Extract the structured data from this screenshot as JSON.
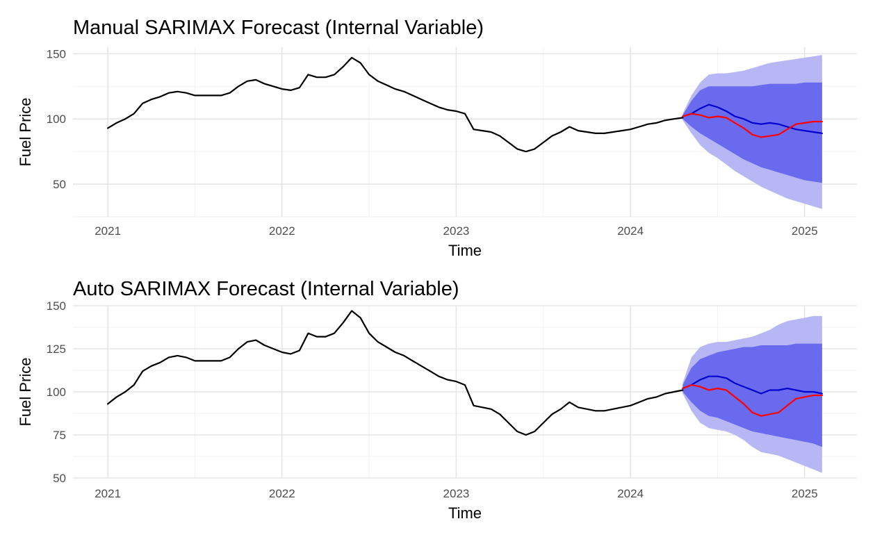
{
  "chart_data": [
    {
      "type": "line",
      "title": "Manual SARIMAX Forecast (Internal Variable)",
      "xlabel": "Time",
      "ylabel": "Fuel Price",
      "x_ticks": [
        "2021",
        "2022",
        "2023",
        "2024",
        "2025"
      ],
      "y_ticks": [
        50,
        100,
        150
      ],
      "xlim": [
        2020.8,
        2025.3
      ],
      "ylim": [
        25,
        155
      ],
      "grid": true,
      "colors": {
        "history": "#000000",
        "forecast": "#0000cc",
        "actual": "#ff0000",
        "band80": "#6a6aee",
        "band95": "#b7b7f5"
      },
      "history": {
        "x": [
          2021.0,
          2021.05,
          2021.1,
          2021.15,
          2021.2,
          2021.25,
          2021.3,
          2021.35,
          2021.4,
          2021.45,
          2021.5,
          2021.55,
          2021.6,
          2021.65,
          2021.7,
          2021.75,
          2021.8,
          2021.85,
          2021.9,
          2021.95,
          2022.0,
          2022.05,
          2022.1,
          2022.15,
          2022.2,
          2022.25,
          2022.3,
          2022.35,
          2022.4,
          2022.45,
          2022.5,
          2022.55,
          2022.6,
          2022.65,
          2022.7,
          2022.75,
          2022.8,
          2022.85,
          2022.9,
          2022.95,
          2023.0,
          2023.05,
          2023.1,
          2023.15,
          2023.2,
          2023.25,
          2023.3,
          2023.35,
          2023.4,
          2023.45,
          2023.5,
          2023.55,
          2023.6,
          2023.65,
          2023.7,
          2023.75,
          2023.8,
          2023.85,
          2023.9,
          2023.95,
          2024.0,
          2024.05,
          2024.1,
          2024.15,
          2024.2,
          2024.25,
          2024.3
        ],
        "y": [
          93,
          97,
          100,
          104,
          112,
          115,
          117,
          120,
          121,
          120,
          118,
          118,
          118,
          118,
          120,
          125,
          129,
          130,
          127,
          125,
          123,
          122,
          124,
          134,
          132,
          132,
          134,
          140,
          147,
          143,
          134,
          129,
          126,
          123,
          121,
          118,
          115,
          112,
          109,
          107,
          106,
          104,
          92,
          91,
          90,
          87,
          82,
          77,
          75,
          77,
          82,
          87,
          90,
          94,
          91,
          90,
          89,
          89,
          90,
          91,
          92,
          94,
          96,
          97,
          99,
          100,
          101
        ]
      },
      "forecast": {
        "x": [
          2024.3,
          2024.35,
          2024.4,
          2024.45,
          2024.5,
          2024.55,
          2024.6,
          2024.65,
          2024.7,
          2024.75,
          2024.8,
          2024.85,
          2024.9,
          2024.95,
          2025.0,
          2025.05,
          2025.1
        ],
        "mean": [
          102,
          104,
          108,
          111,
          109,
          106,
          102,
          100,
          97,
          96,
          97,
          96,
          94,
          92,
          91,
          90,
          89
        ],
        "lo80": [
          100,
          94,
          89,
          85,
          81,
          77,
          73,
          69,
          66,
          63,
          61,
          59,
          57,
          55,
          53,
          52,
          51
        ],
        "hi80": [
          103,
          114,
          122,
          125,
          125,
          125,
          125,
          125,
          125,
          126,
          127,
          127,
          127,
          127,
          128,
          128,
          128
        ],
        "lo95": [
          99,
          89,
          80,
          74,
          70,
          65,
          60,
          56,
          52,
          48,
          45,
          42,
          39,
          37,
          35,
          33,
          31
        ],
        "hi95": [
          104,
          118,
          128,
          134,
          135,
          135,
          136,
          137,
          139,
          141,
          143,
          144,
          145,
          146,
          147,
          148,
          149
        ]
      },
      "actual": {
        "x": [
          2024.3,
          2024.35,
          2024.4,
          2024.45,
          2024.5,
          2024.55,
          2024.6,
          2024.65,
          2024.7,
          2024.75,
          2024.8,
          2024.85,
          2024.9,
          2024.95,
          2025.0,
          2025.05,
          2025.1
        ],
        "y": [
          102,
          104,
          103,
          101,
          102,
          101,
          97,
          93,
          88,
          86,
          87,
          88,
          92,
          96,
          97,
          98,
          98
        ]
      }
    },
    {
      "type": "line",
      "title": "Auto SARIMAX Forecast (Internal Variable)",
      "xlabel": "Time",
      "ylabel": "Fuel Price",
      "x_ticks": [
        "2021",
        "2022",
        "2023",
        "2024",
        "2025"
      ],
      "y_ticks": [
        50,
        75,
        100,
        125,
        150
      ],
      "xlim": [
        2020.8,
        2025.3
      ],
      "ylim": [
        50,
        150
      ],
      "grid": true,
      "colors": {
        "history": "#000000",
        "forecast": "#0000cc",
        "actual": "#ff0000",
        "band80": "#6a6aee",
        "band95": "#b7b7f5"
      },
      "history": {
        "x": [
          2021.0,
          2021.05,
          2021.1,
          2021.15,
          2021.2,
          2021.25,
          2021.3,
          2021.35,
          2021.4,
          2021.45,
          2021.5,
          2021.55,
          2021.6,
          2021.65,
          2021.7,
          2021.75,
          2021.8,
          2021.85,
          2021.9,
          2021.95,
          2022.0,
          2022.05,
          2022.1,
          2022.15,
          2022.2,
          2022.25,
          2022.3,
          2022.35,
          2022.4,
          2022.45,
          2022.5,
          2022.55,
          2022.6,
          2022.65,
          2022.7,
          2022.75,
          2022.8,
          2022.85,
          2022.9,
          2022.95,
          2023.0,
          2023.05,
          2023.1,
          2023.15,
          2023.2,
          2023.25,
          2023.3,
          2023.35,
          2023.4,
          2023.45,
          2023.5,
          2023.55,
          2023.6,
          2023.65,
          2023.7,
          2023.75,
          2023.8,
          2023.85,
          2023.9,
          2023.95,
          2024.0,
          2024.05,
          2024.1,
          2024.15,
          2024.2,
          2024.25,
          2024.3
        ],
        "y": [
          93,
          97,
          100,
          104,
          112,
          115,
          117,
          120,
          121,
          120,
          118,
          118,
          118,
          118,
          120,
          125,
          129,
          130,
          127,
          125,
          123,
          122,
          124,
          134,
          132,
          132,
          134,
          140,
          147,
          143,
          134,
          129,
          126,
          123,
          121,
          118,
          115,
          112,
          109,
          107,
          106,
          104,
          92,
          91,
          90,
          87,
          82,
          77,
          75,
          77,
          82,
          87,
          90,
          94,
          91,
          90,
          89,
          89,
          90,
          91,
          92,
          94,
          96,
          97,
          99,
          100,
          101
        ]
      },
      "forecast": {
        "x": [
          2024.3,
          2024.35,
          2024.4,
          2024.45,
          2024.5,
          2024.55,
          2024.6,
          2024.65,
          2024.7,
          2024.75,
          2024.8,
          2024.85,
          2024.9,
          2024.95,
          2025.0,
          2025.05,
          2025.1
        ],
        "mean": [
          102,
          104,
          107,
          109,
          109,
          108,
          105,
          103,
          101,
          99,
          101,
          101,
          102,
          101,
          100,
          100,
          99
        ],
        "lo80": [
          100,
          94,
          89,
          86,
          85,
          83,
          81,
          79,
          77,
          76,
          75,
          74,
          73,
          72,
          71,
          70,
          68
        ],
        "hi80": [
          104,
          114,
          119,
          121,
          123,
          124,
          125,
          126,
          126,
          127,
          127,
          127,
          127,
          128,
          128,
          128,
          128
        ],
        "lo95": [
          99,
          89,
          82,
          79,
          78,
          77,
          75,
          72,
          68,
          65,
          64,
          63,
          61,
          59,
          57,
          55,
          53
        ],
        "hi95": [
          105,
          120,
          126,
          128,
          129,
          129,
          130,
          131,
          132,
          134,
          136,
          139,
          141,
          142,
          143,
          144,
          144
        ]
      },
      "actual": {
        "x": [
          2024.3,
          2024.35,
          2024.4,
          2024.45,
          2024.5,
          2024.55,
          2024.6,
          2024.65,
          2024.7,
          2024.75,
          2024.8,
          2024.85,
          2024.9,
          2024.95,
          2025.0,
          2025.05,
          2025.1
        ],
        "y": [
          102,
          104,
          103,
          101,
          102,
          101,
          97,
          93,
          88,
          86,
          87,
          88,
          92,
          96,
          97,
          98,
          98
        ]
      }
    }
  ]
}
